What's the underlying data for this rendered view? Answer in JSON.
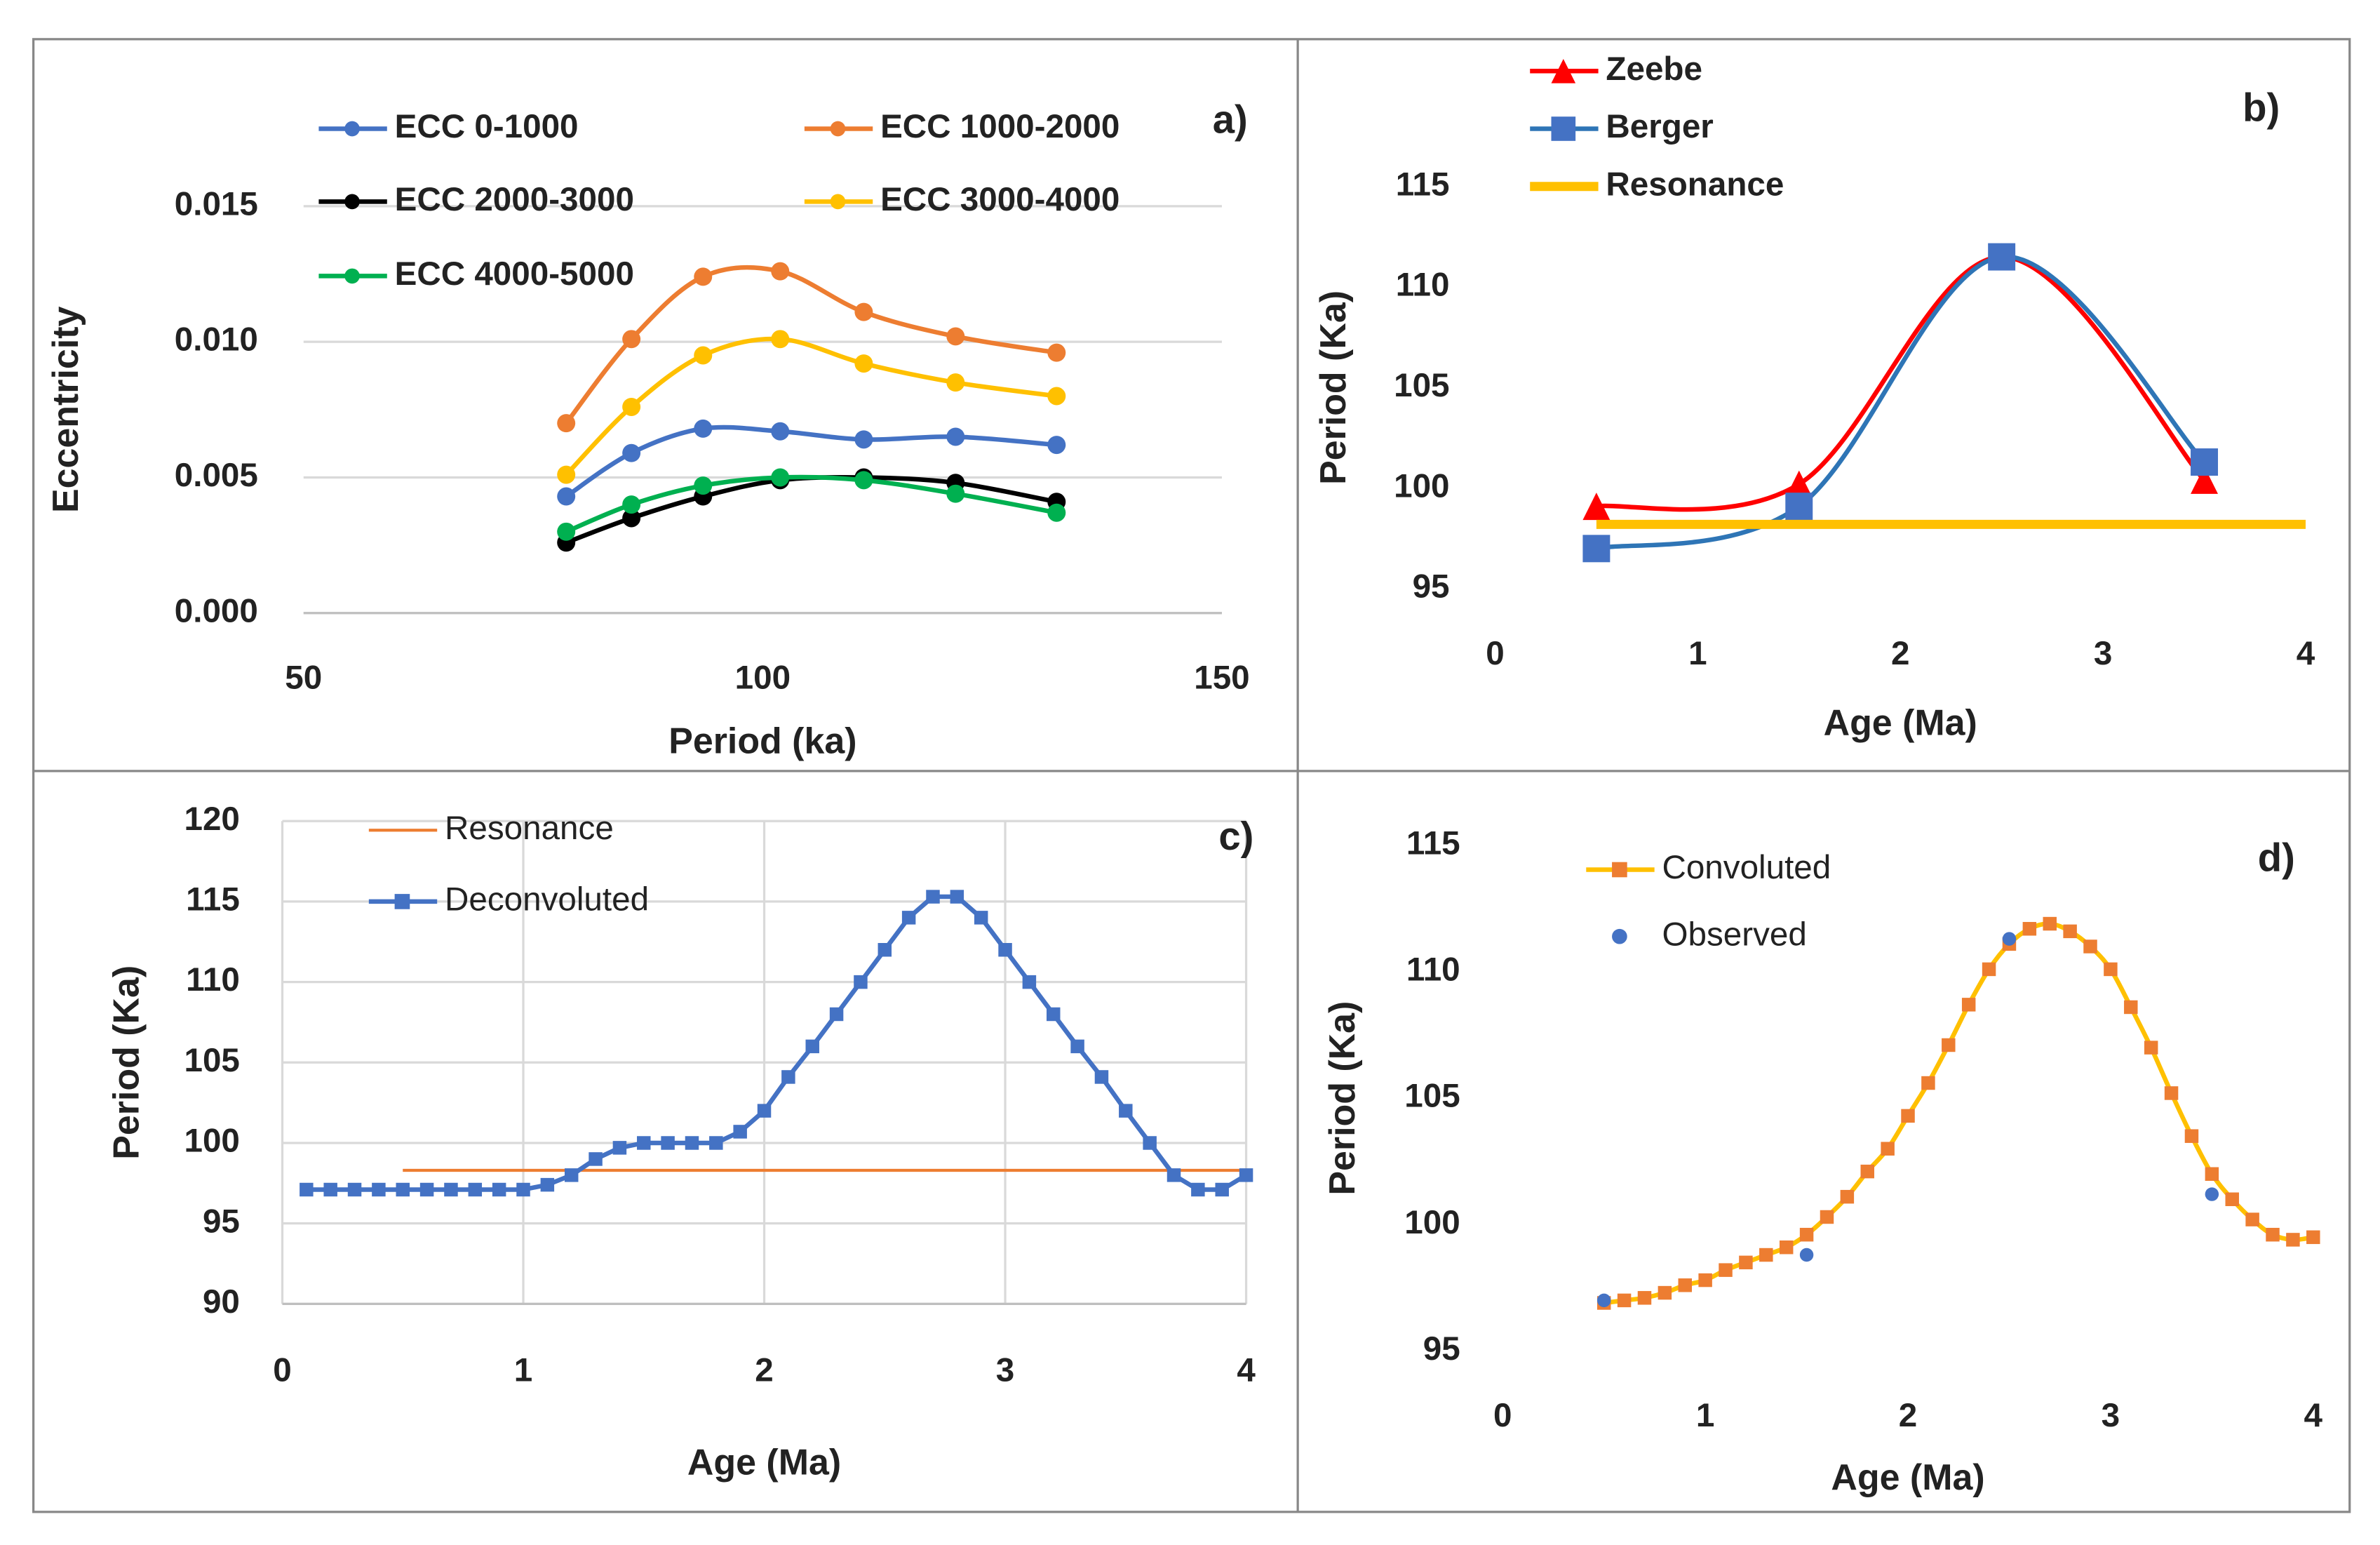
{
  "chart_data": [
    {
      "type": "line",
      "panel_label": "a)",
      "x_label": "Period (ka)",
      "y_label": "Eccentricity",
      "grid": true,
      "x": [
        78.6,
        85.7,
        93.5,
        101.9,
        111,
        121,
        132
      ],
      "xlim": [
        50,
        150
      ],
      "xticks": [
        50,
        100,
        150
      ],
      "ylim": [
        0,
        0.015
      ],
      "yticks": [
        {
          "value": 0,
          "label": "0.000"
        },
        {
          "value": 0.005,
          "label": "0.005"
        },
        {
          "value": 0.01,
          "label": "0.010"
        },
        {
          "value": 0.015,
          "label": "0.015"
        }
      ],
      "series": [
        {
          "name": "ECC 0-1000",
          "color": "#4472c4",
          "marker": "circle",
          "smooth": true,
          "values": [
            0.0043,
            0.0059,
            0.0068,
            0.0067,
            0.0064,
            0.0065,
            0.0062
          ]
        },
        {
          "name": "ECC 1000-2000",
          "color": "#ed7d31",
          "marker": "circle",
          "smooth": true,
          "values": [
            0.007,
            0.0101,
            0.0124,
            0.0126,
            0.0111,
            0.0102,
            0.0096
          ]
        },
        {
          "name": "ECC 2000-3000",
          "color": "#000000",
          "marker": "circle",
          "smooth": true,
          "values": [
            0.0026,
            0.0035,
            0.0043,
            0.0049,
            0.005,
            0.0048,
            0.0041
          ]
        },
        {
          "name": "ECC 3000-4000",
          "color": "#ffc000",
          "marker": "circle",
          "smooth": true,
          "values": [
            0.0051,
            0.0076,
            0.0095,
            0.0101,
            0.0092,
            0.0085,
            0.008
          ]
        },
        {
          "name": "ECC 4000-5000",
          "color": "#00b050",
          "marker": "circle",
          "smooth": true,
          "values": [
            0.003,
            0.004,
            0.0047,
            0.005,
            0.0049,
            0.0044,
            0.0037
          ]
        }
      ]
    },
    {
      "type": "line",
      "panel_label": "b)",
      "x_label": "Age (Ma)",
      "y_label": "Period (Ka)",
      "grid": false,
      "xlim": [
        0,
        4
      ],
      "xticks": [
        0,
        1,
        2,
        3,
        4
      ],
      "ylim": [
        95,
        115
      ],
      "yticks": [
        95,
        100,
        105,
        110,
        115
      ],
      "series": [
        {
          "name": "Zeebe",
          "color": "#ff0000",
          "marker": "triangle",
          "smooth": true,
          "x": [
            0.5,
            1.5,
            2.5,
            3.5
          ],
          "values": [
            99.1,
            100.2,
            111.5,
            100.4
          ]
        },
        {
          "name": "Berger",
          "color": "#2e75b6",
          "marker_color": "#4472c4",
          "marker": "square",
          "smooth": true,
          "x": [
            0.5,
            1.5,
            2.5,
            3.5
          ],
          "values": [
            97.0,
            99.1,
            111.5,
            101.3
          ]
        },
        {
          "name": "Resonance",
          "color": "#ffc000",
          "marker": "none",
          "width": 6,
          "smooth": false,
          "x": [
            0.5,
            4
          ],
          "values": [
            98.2,
            98.2
          ]
        }
      ]
    },
    {
      "type": "line",
      "panel_label": "c)",
      "x_label": "Age (Ma)",
      "y_label": "Period (Ka)",
      "grid": true,
      "xlim": [
        0,
        4
      ],
      "xticks": [
        0,
        1,
        2,
        3,
        4
      ],
      "ylim": [
        90,
        120
      ],
      "yticks": [
        90,
        95,
        100,
        105,
        110,
        115,
        120
      ],
      "series": [
        {
          "name": "Resonance",
          "color": "#ed7d31",
          "marker": "none",
          "width": 2,
          "smooth": false,
          "x": [
            0.5,
            4
          ],
          "values": [
            98.3,
            98.3
          ]
        },
        {
          "name": "Deconvoluted",
          "color": "#4472c4",
          "marker": "square",
          "width": 3,
          "smooth": false,
          "x": [
            0.1,
            0.2,
            0.3,
            0.4,
            0.5,
            0.6,
            0.7,
            0.8,
            0.9,
            1.0,
            1.1,
            1.2,
            1.3,
            1.4,
            1.5,
            1.6,
            1.7,
            1.8,
            1.9,
            2.0,
            2.1,
            2.2,
            2.3,
            2.4,
            2.5,
            2.6,
            2.7,
            2.8,
            2.9,
            3.0,
            3.1,
            3.2,
            3.3,
            3.4,
            3.5,
            3.6,
            3.7,
            3.8,
            3.9,
            4.0
          ],
          "values": [
            97.1,
            97.1,
            97.1,
            97.1,
            97.1,
            97.1,
            97.1,
            97.1,
            97.1,
            97.1,
            97.4,
            98,
            99,
            99.7,
            100,
            100,
            100,
            100,
            100.7,
            102,
            104.1,
            106,
            108,
            110,
            112,
            114,
            115.3,
            115.3,
            114,
            112,
            110,
            108,
            106,
            104.1,
            102,
            100,
            98,
            97.1,
            97.1,
            98
          ]
        }
      ]
    },
    {
      "type": "line",
      "panel_label": "d)",
      "x_label": "Age (Ma)",
      "y_label": "Period (Ka)",
      "grid": false,
      "xlim": [
        0,
        4
      ],
      "xticks": [
        0,
        1,
        2,
        3,
        4
      ],
      "ylim": [
        95,
        115
      ],
      "yticks": [
        95,
        100,
        105,
        110,
        115
      ],
      "series": [
        {
          "name": "Convoluted",
          "color": "#ffc000",
          "marker_color": "#ed7d31",
          "marker": "square",
          "width": 3,
          "smooth": true,
          "x": [
            0.5,
            0.6,
            0.7,
            0.8,
            0.9,
            1.0,
            1.1,
            1.2,
            1.3,
            1.4,
            1.5,
            1.6,
            1.7,
            1.8,
            1.9,
            2.0,
            2.1,
            2.2,
            2.3,
            2.4,
            2.5,
            2.6,
            2.7,
            2.8,
            2.9,
            3.0,
            3.1,
            3.2,
            3.3,
            3.4,
            3.5,
            3.6,
            3.7,
            3.8,
            3.9,
            4.0
          ],
          "values": [
            96.9,
            97.0,
            97.1,
            97.3,
            97.6,
            97.8,
            98.2,
            98.5,
            98.8,
            99.1,
            99.6,
            100.3,
            101.1,
            102.1,
            103.0,
            104.3,
            105.6,
            107.1,
            108.7,
            110.1,
            111.1,
            111.7,
            111.9,
            111.6,
            111.0,
            110.1,
            108.6,
            107.0,
            105.2,
            103.5,
            102.0,
            101.0,
            100.2,
            99.6,
            99.4,
            99.5
          ]
        },
        {
          "name": "Observed",
          "color": "#4472c4",
          "marker": "circle",
          "line": false,
          "x": [
            0.5,
            1.5,
            2.5,
            3.5
          ],
          "values": [
            97.0,
            98.8,
            111.3,
            101.2
          ]
        }
      ]
    }
  ]
}
